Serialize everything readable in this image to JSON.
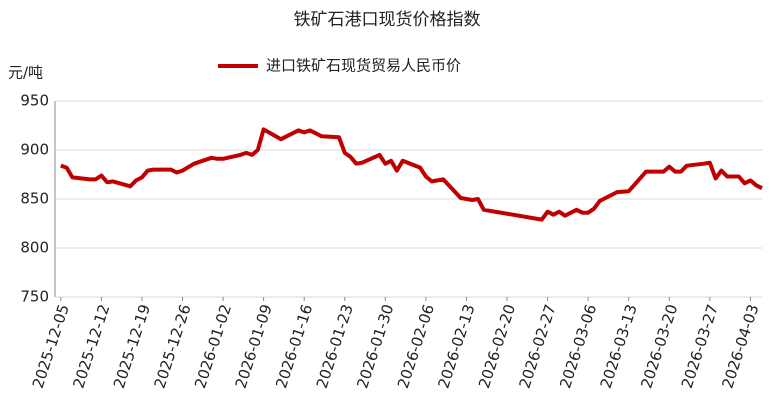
{
  "chart_data": {
    "type": "line",
    "title": "铁矿石港口现货价格指数",
    "y_label": "元/吨",
    "x": [
      "2025-12-05",
      "2025-12-06",
      "2025-12-07",
      "2025-12-10",
      "2025-12-11",
      "2025-12-12",
      "2025-12-13",
      "2025-12-14",
      "2025-12-17",
      "2025-12-18",
      "2025-12-19",
      "2025-12-20",
      "2025-12-21",
      "2025-12-24",
      "2025-12-25",
      "2025-12-26",
      "2025-12-28",
      "2025-12-31",
      "2026-01-01",
      "2026-01-02",
      "2026-01-05",
      "2026-01-06",
      "2026-01-07",
      "2026-01-08",
      "2026-01-09",
      "2026-01-12",
      "2026-01-14",
      "2026-01-15",
      "2026-01-16",
      "2026-01-17",
      "2026-01-19",
      "2026-01-22",
      "2026-01-23",
      "2026-01-24",
      "2026-01-25",
      "2026-01-26",
      "2026-01-29",
      "2026-01-30",
      "2026-01-31",
      "2026-02-01",
      "2026-02-02",
      "2026-02-05",
      "2026-02-06",
      "2026-02-07",
      "2026-02-09",
      "2026-02-12",
      "2026-02-14",
      "2026-02-15",
      "2026-02-16",
      "2026-02-26",
      "2026-02-27",
      "2026-02-28",
      "2026-03-01",
      "2026-03-02",
      "2026-03-04",
      "2026-03-05",
      "2026-03-06",
      "2026-03-07",
      "2026-03-08",
      "2026-03-11",
      "2026-03-13",
      "2026-03-16",
      "2026-03-19",
      "2026-03-20",
      "2026-03-21",
      "2026-03-22",
      "2026-03-23",
      "2026-03-26",
      "2026-03-27",
      "2026-03-28",
      "2026-03-29",
      "2026-03-30",
      "2026-04-01",
      "2026-04-02",
      "2026-04-03",
      "2026-04-04",
      "2026-04-05"
    ],
    "series": [
      {
        "name": "进口铁矿石现货贸易人民币价",
        "color": "#c00000",
        "values": [
          884,
          882,
          872,
          870,
          870,
          874,
          867,
          868,
          863,
          869,
          872,
          879,
          880,
          880,
          877,
          879,
          886,
          892,
          891,
          891,
          895,
          897,
          895,
          900,
          921,
          911,
          917,
          920,
          918,
          920,
          914,
          913,
          897,
          893,
          886,
          887,
          895,
          886,
          889,
          879,
          889,
          882,
          873,
          868,
          870,
          851,
          849,
          850,
          839,
          829,
          837,
          834,
          837,
          833,
          839,
          836,
          836,
          840,
          848,
          857,
          858,
          878,
          878,
          883,
          878,
          878,
          884,
          886,
          887,
          871,
          879,
          873,
          873,
          866,
          869,
          864,
          861
        ]
      }
    ],
    "xlim": [
      "2025-12-04",
      "2026-04-05"
    ],
    "xticks": [
      "2025-12-05",
      "2025-12-12",
      "2025-12-19",
      "2025-12-26",
      "2026-01-02",
      "2026-01-09",
      "2026-01-16",
      "2026-01-23",
      "2026-01-30",
      "2026-02-06",
      "2026-02-13",
      "2026-02-20",
      "2026-02-27",
      "2026-03-06",
      "2026-03-13",
      "2026-03-20",
      "2026-03-27",
      "2026-04-03"
    ],
    "ylim": [
      750,
      950
    ],
    "yticks": [
      750,
      800,
      850,
      900,
      950
    ],
    "grid": true
  }
}
